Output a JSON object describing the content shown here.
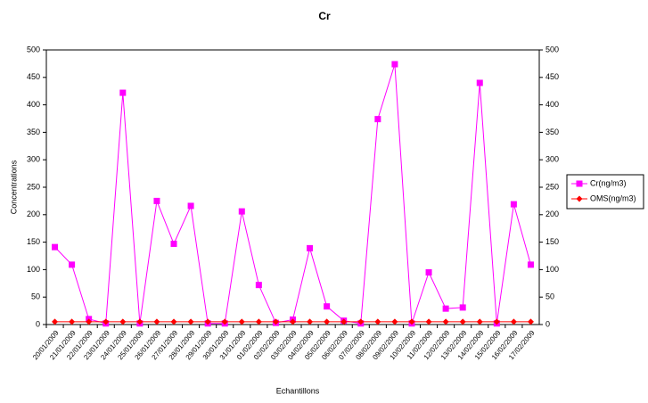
{
  "chart_data": {
    "type": "line",
    "title": "Cr",
    "y_label": "Concentrations",
    "x_label": "Echantillons",
    "categories": [
      "20/01/2009",
      "21/01/2009",
      "22/01/2009",
      "23/01/2009",
      "24/01/2009",
      "25/01/2009",
      "26/01/2009",
      "27/01/2009",
      "28/01/2009",
      "29/01/2009",
      "30/01/2009",
      "31/01/2009",
      "01/02/2009",
      "02/02/2009",
      "03/02/2009",
      "04/02/2009",
      "05/02/2009",
      "06/02/2009",
      "07/02/2009",
      "08/02/2009",
      "09/02/2009",
      "10/02/2009",
      "11/02/2009",
      "12/02/2009",
      "13/02/2009",
      "14/02/2009",
      "15/02/2009",
      "16/02/2009",
      "17/02/2009"
    ],
    "series": [
      {
        "name": "Cr(ng/m3)",
        "color": "#ff00ff",
        "marker": "square",
        "values": [
          141,
          109,
          10,
          2,
          422,
          2,
          225,
          147,
          216,
          2,
          2,
          206,
          72,
          3,
          9,
          139,
          33,
          7,
          2,
          374,
          474,
          2,
          95,
          29,
          31,
          440,
          2,
          219,
          109
        ]
      },
      {
        "name": "OMS(ng/m3)",
        "color": "#ff0000",
        "marker": "diamond",
        "values": [
          5,
          5,
          5,
          5,
          5,
          5,
          5,
          5,
          5,
          5,
          5,
          5,
          5,
          5,
          5,
          5,
          5,
          5,
          5,
          5,
          5,
          5,
          5,
          5,
          5,
          5,
          5,
          5,
          5
        ]
      }
    ],
    "ylim": [
      0,
      500
    ],
    "yticks": [
      0,
      50,
      100,
      150,
      200,
      250,
      300,
      350,
      400,
      450,
      500
    ],
    "y2lim": [
      0,
      500
    ],
    "y2ticks": [
      0,
      50,
      100,
      150,
      200,
      250,
      300,
      350,
      400,
      450,
      500
    ],
    "legend": "right"
  }
}
